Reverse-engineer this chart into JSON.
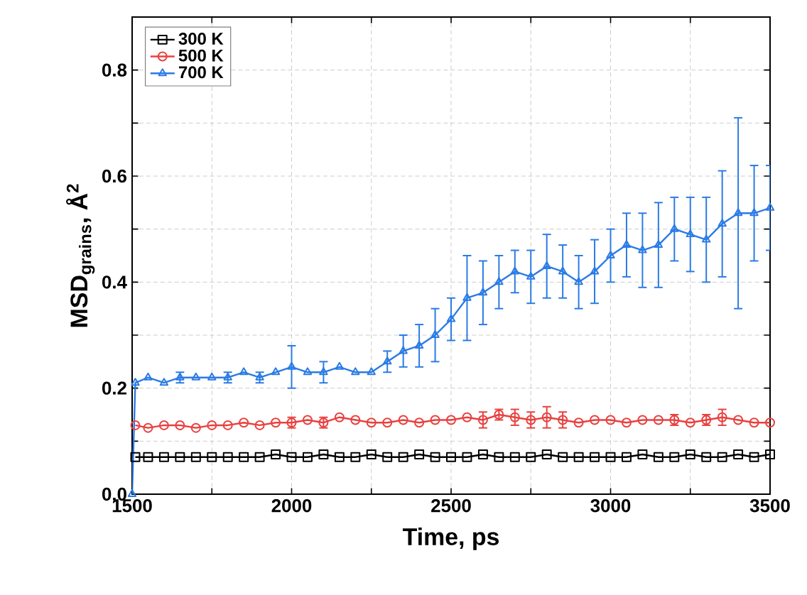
{
  "chart_data": {
    "type": "line",
    "xlabel": "Time, ps",
    "ylabel": "MSD$_{grains}$, Å$^{2}$",
    "xlim": [
      1500,
      3500
    ],
    "ylim": [
      0,
      0.9
    ],
    "xticks": [
      1500,
      {
        "value": 1750,
        "label": null
      },
      2000,
      {
        "value": 2250,
        "label": null
      },
      2500,
      {
        "value": 2750,
        "label": null
      },
      3000,
      {
        "value": 3250,
        "label": null
      },
      3500
    ],
    "yticks": [
      {
        "value": 0,
        "label": "0.0"
      },
      {
        "value": 0.1,
        "label": null
      },
      0.2,
      {
        "value": 0.3,
        "label": null
      },
      0.4,
      {
        "value": 0.5,
        "label": null
      },
      0.6,
      {
        "value": 0.7,
        "label": null
      },
      0.8
    ],
    "grid": true,
    "legend": "top left",
    "line_style": "solid",
    "series": [
      {
        "name": "300 K",
        "color": "#000000",
        "marker": "square",
        "x": [
          1510,
          1550,
          1600,
          1650,
          1700,
          1750,
          1800,
          1850,
          1900,
          1950,
          2000,
          2050,
          2100,
          2150,
          2200,
          2250,
          2300,
          2350,
          2400,
          2450,
          2500,
          2550,
          2600,
          2650,
          2700,
          2750,
          2800,
          2850,
          2900,
          2950,
          3000,
          3050,
          3100,
          3150,
          3200,
          3250,
          3300,
          3350,
          3400,
          3450,
          3500
        ],
        "values": [
          0.07,
          0.07,
          0.07,
          0.07,
          0.07,
          0.07,
          0.07,
          0.07,
          0.07,
          0.075,
          0.07,
          0.07,
          0.075,
          0.07,
          0.07,
          0.075,
          0.07,
          0.07,
          0.075,
          0.07,
          0.07,
          0.07,
          0.075,
          0.07,
          0.07,
          0.07,
          0.075,
          0.07,
          0.07,
          0.07,
          0.07,
          0.07,
          0.075,
          0.07,
          0.07,
          0.075,
          0.07,
          0.07,
          0.075,
          0.07,
          0.075
        ]
      },
      {
        "name": "500 K",
        "color": "#e8413f",
        "marker": "circle",
        "x": [
          1510,
          1550,
          1600,
          1650,
          1700,
          1750,
          1800,
          1850,
          1900,
          1950,
          2000,
          2050,
          2100,
          2150,
          2200,
          2250,
          2300,
          2350,
          2400,
          2450,
          2500,
          2550,
          2600,
          2650,
          2700,
          2750,
          2800,
          2850,
          2900,
          2950,
          3000,
          3050,
          3100,
          3150,
          3200,
          3250,
          3300,
          3350,
          3400,
          3450,
          3500
        ],
        "values": [
          0.13,
          0.125,
          0.13,
          0.13,
          0.125,
          0.13,
          0.13,
          0.135,
          0.13,
          0.135,
          0.135,
          0.14,
          0.135,
          0.145,
          0.14,
          0.135,
          0.135,
          0.14,
          0.135,
          0.14,
          0.14,
          0.145,
          0.14,
          0.15,
          0.145,
          0.14,
          0.145,
          0.14,
          0.135,
          0.14,
          0.14,
          0.135,
          0.14,
          0.14,
          0.14,
          0.135,
          0.14,
          0.145,
          0.14,
          0.135,
          0.135
        ],
        "errors": [
          null,
          null,
          null,
          null,
          null,
          null,
          null,
          null,
          null,
          null,
          0.01,
          null,
          0.01,
          null,
          null,
          null,
          null,
          null,
          null,
          null,
          null,
          null,
          0.015,
          0.01,
          0.015,
          0.015,
          0.02,
          0.015,
          null,
          null,
          null,
          null,
          null,
          null,
          0.01,
          null,
          0.01,
          0.015,
          null,
          null,
          null
        ]
      },
      {
        "name": "700 K",
        "color": "#2a7be4",
        "marker": "triangle",
        "x": [
          1500,
          1510,
          1550,
          1600,
          1650,
          1700,
          1750,
          1800,
          1850,
          1900,
          1950,
          2000,
          2050,
          2100,
          2150,
          2200,
          2250,
          2300,
          2350,
          2400,
          2450,
          2500,
          2550,
          2600,
          2650,
          2700,
          2750,
          2800,
          2850,
          2900,
          2950,
          3000,
          3050,
          3100,
          3150,
          3200,
          3250,
          3300,
          3350,
          3400,
          3450,
          3500
        ],
        "values": [
          0.0,
          0.21,
          0.22,
          0.21,
          0.22,
          0.22,
          0.22,
          0.22,
          0.23,
          0.22,
          0.23,
          0.24,
          0.23,
          0.23,
          0.24,
          0.23,
          0.23,
          0.25,
          0.27,
          0.28,
          0.3,
          0.33,
          0.37,
          0.38,
          0.4,
          0.42,
          0.41,
          0.43,
          0.42,
          0.4,
          0.42,
          0.45,
          0.47,
          0.46,
          0.47,
          0.5,
          0.49,
          0.48,
          0.51,
          0.53,
          0.53,
          0.54
        ],
        "errors": [
          null,
          null,
          null,
          null,
          0.01,
          null,
          null,
          0.01,
          null,
          0.01,
          null,
          0.04,
          null,
          0.02,
          null,
          null,
          null,
          0.02,
          0.03,
          0.04,
          0.05,
          0.04,
          0.08,
          0.06,
          0.05,
          0.04,
          0.05,
          0.06,
          0.05,
          0.05,
          0.06,
          0.05,
          0.06,
          0.07,
          0.08,
          0.06,
          0.07,
          0.08,
          0.1,
          0.18,
          0.09,
          0.08
        ]
      }
    ]
  }
}
